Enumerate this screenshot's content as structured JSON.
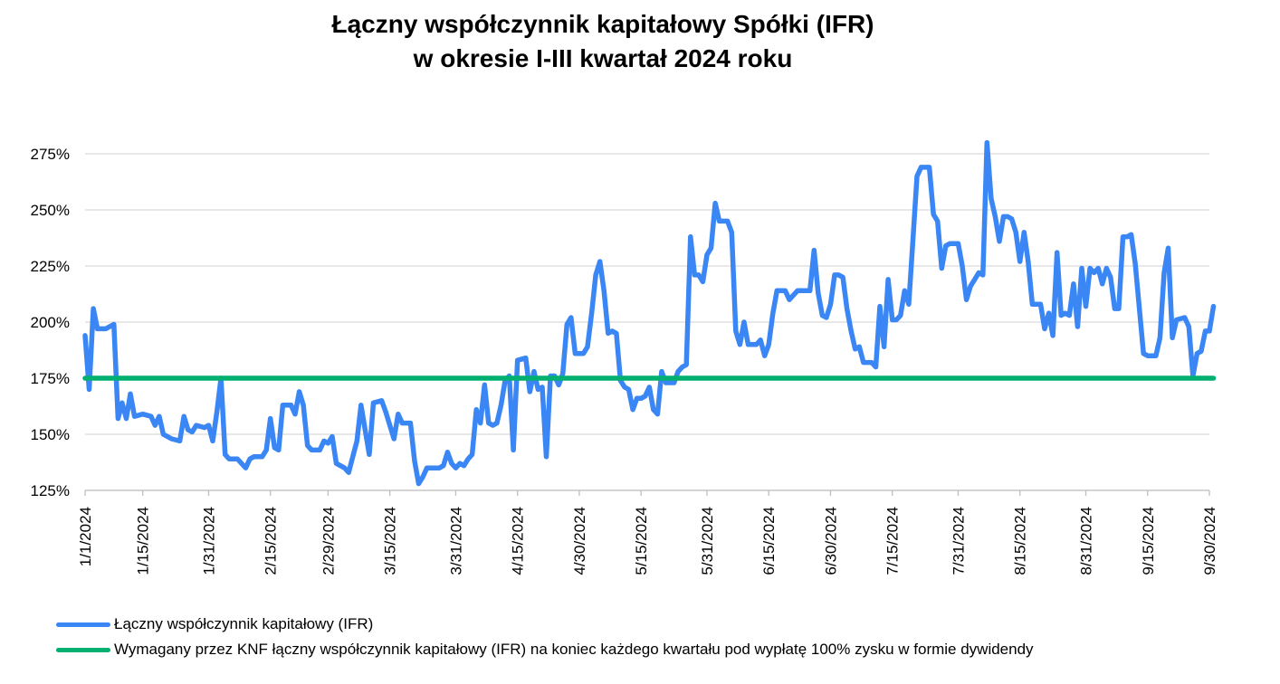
{
  "title_line1": "Łączny współczynnik kapitałowy Spółki (IFR)",
  "title_line2": "w okresie I-III kwartał 2024 roku",
  "chart_data": {
    "type": "line",
    "title": "Łączny współczynnik kapitałowy Spółki (IFR) w okresie I-III kwartał 2024 roku",
    "xlabel": "",
    "ylabel": "",
    "x_range": [
      "2024-01-01",
      "2024-09-30"
    ],
    "x_tick_labels": [
      "1/1/2024",
      "1/15/2024",
      "1/31/2024",
      "2/15/2024",
      "2/29/2024",
      "3/15/2024",
      "3/31/2024",
      "4/15/2024",
      "4/30/2024",
      "5/15/2024",
      "5/31/2024",
      "6/15/2024",
      "6/30/2024",
      "7/15/2024",
      "7/31/2024",
      "8/15/2024",
      "8/31/2024",
      "9/15/2024",
      "9/30/2024"
    ],
    "y_ticks": [
      125,
      150,
      175,
      200,
      225,
      250,
      275
    ],
    "y_tick_labels": [
      "125%",
      "150%",
      "175%",
      "200%",
      "225%",
      "250%",
      "275%"
    ],
    "ylim": [
      125,
      280
    ],
    "grid": "horizontal",
    "legend_position": "bottom",
    "series": [
      {
        "name": "Łączny współczynnik kapitałowy (IFR)",
        "color": "#3a86f4",
        "points": [
          [
            "2024-01-01",
            194
          ],
          [
            "2024-01-02",
            170
          ],
          [
            "2024-01-03",
            206
          ],
          [
            "2024-01-04",
            197
          ],
          [
            "2024-01-06",
            197
          ],
          [
            "2024-01-08",
            199
          ],
          [
            "2024-01-09",
            157
          ],
          [
            "2024-01-10",
            164
          ],
          [
            "2024-01-11",
            157
          ],
          [
            "2024-01-12",
            168
          ],
          [
            "2024-01-13",
            158
          ],
          [
            "2024-01-15",
            159
          ],
          [
            "2024-01-17",
            158
          ],
          [
            "2024-01-18",
            154
          ],
          [
            "2024-01-19",
            158
          ],
          [
            "2024-01-20",
            150
          ],
          [
            "2024-01-22",
            148
          ],
          [
            "2024-01-24",
            147
          ],
          [
            "2024-01-25",
            158
          ],
          [
            "2024-01-26",
            152
          ],
          [
            "2024-01-27",
            151
          ],
          [
            "2024-01-28",
            154
          ],
          [
            "2024-01-30",
            153
          ],
          [
            "2024-01-31",
            154
          ],
          [
            "2024-02-01",
            147
          ],
          [
            "2024-02-02",
            160
          ],
          [
            "2024-02-03",
            175
          ],
          [
            "2024-02-04",
            141
          ],
          [
            "2024-02-05",
            139
          ],
          [
            "2024-02-07",
            139
          ],
          [
            "2024-02-09",
            135
          ],
          [
            "2024-02-10",
            139
          ],
          [
            "2024-02-11",
            140
          ],
          [
            "2024-02-13",
            140
          ],
          [
            "2024-02-14",
            143
          ],
          [
            "2024-02-15",
            157
          ],
          [
            "2024-02-16",
            144
          ],
          [
            "2024-02-17",
            143
          ],
          [
            "2024-02-18",
            163
          ],
          [
            "2024-02-20",
            163
          ],
          [
            "2024-02-21",
            159
          ],
          [
            "2024-02-22",
            169
          ],
          [
            "2024-02-23",
            163
          ],
          [
            "2024-02-24",
            145
          ],
          [
            "2024-02-25",
            143
          ],
          [
            "2024-02-27",
            143
          ],
          [
            "2024-02-28",
            147
          ],
          [
            "2024-02-29",
            146
          ],
          [
            "2024-03-01",
            149
          ],
          [
            "2024-03-02",
            137
          ],
          [
            "2024-03-04",
            135
          ],
          [
            "2024-03-05",
            133
          ],
          [
            "2024-03-06",
            140
          ],
          [
            "2024-03-07",
            147
          ],
          [
            "2024-03-08",
            163
          ],
          [
            "2024-03-10",
            141
          ],
          [
            "2024-03-11",
            164
          ],
          [
            "2024-03-13",
            165
          ],
          [
            "2024-03-14",
            160
          ],
          [
            "2024-03-16",
            148
          ],
          [
            "2024-03-17",
            159
          ],
          [
            "2024-03-18",
            155
          ],
          [
            "2024-03-20",
            155
          ],
          [
            "2024-03-21",
            138
          ],
          [
            "2024-03-22",
            128
          ],
          [
            "2024-03-23",
            131
          ],
          [
            "2024-03-24",
            135
          ],
          [
            "2024-03-26",
            135
          ],
          [
            "2024-03-27",
            135
          ],
          [
            "2024-03-28",
            136
          ],
          [
            "2024-03-29",
            142
          ],
          [
            "2024-03-30",
            137
          ],
          [
            "2024-03-31",
            135
          ],
          [
            "2024-04-01",
            137
          ],
          [
            "2024-04-02",
            136
          ],
          [
            "2024-04-03",
            139
          ],
          [
            "2024-04-04",
            141
          ],
          [
            "2024-04-05",
            161
          ],
          [
            "2024-04-06",
            155
          ],
          [
            "2024-04-07",
            172
          ],
          [
            "2024-04-08",
            155
          ],
          [
            "2024-04-09",
            154
          ],
          [
            "2024-04-10",
            155
          ],
          [
            "2024-04-11",
            163
          ],
          [
            "2024-04-12",
            174
          ],
          [
            "2024-04-13",
            176
          ],
          [
            "2024-04-14",
            143
          ],
          [
            "2024-04-15",
            183
          ],
          [
            "2024-04-17",
            184
          ],
          [
            "2024-04-18",
            169
          ],
          [
            "2024-04-19",
            178
          ],
          [
            "2024-04-20",
            170
          ],
          [
            "2024-04-21",
            171
          ],
          [
            "2024-04-22",
            140
          ],
          [
            "2024-04-23",
            176
          ],
          [
            "2024-04-24",
            176
          ],
          [
            "2024-04-25",
            172
          ],
          [
            "2024-04-26",
            177
          ],
          [
            "2024-04-27",
            199
          ],
          [
            "2024-04-28",
            202
          ],
          [
            "2024-04-29",
            186
          ],
          [
            "2024-04-30",
            186
          ],
          [
            "2024-05-01",
            186
          ],
          [
            "2024-05-02",
            189
          ],
          [
            "2024-05-03",
            204
          ],
          [
            "2024-05-04",
            221
          ],
          [
            "2024-05-05",
            227
          ],
          [
            "2024-05-06",
            214
          ],
          [
            "2024-05-07",
            195
          ],
          [
            "2024-05-08",
            196
          ],
          [
            "2024-05-09",
            195
          ],
          [
            "2024-05-10",
            174
          ],
          [
            "2024-05-11",
            171
          ],
          [
            "2024-05-12",
            170
          ],
          [
            "2024-05-13",
            161
          ],
          [
            "2024-05-14",
            166
          ],
          [
            "2024-05-15",
            166
          ],
          [
            "2024-05-16",
            167
          ],
          [
            "2024-05-17",
            171
          ],
          [
            "2024-05-18",
            161
          ],
          [
            "2024-05-19",
            159
          ],
          [
            "2024-05-20",
            178
          ],
          [
            "2024-05-21",
            173
          ],
          [
            "2024-05-22",
            173
          ],
          [
            "2024-05-23",
            173
          ],
          [
            "2024-05-24",
            178
          ],
          [
            "2024-05-25",
            180
          ],
          [
            "2024-05-26",
            181
          ],
          [
            "2024-05-27",
            238
          ],
          [
            "2024-05-28",
            221
          ],
          [
            "2024-05-29",
            221
          ],
          [
            "2024-05-30",
            218
          ],
          [
            "2024-05-31",
            230
          ],
          [
            "2024-06-01",
            233
          ],
          [
            "2024-06-02",
            253
          ],
          [
            "2024-06-03",
            245
          ],
          [
            "2024-06-04",
            245
          ],
          [
            "2024-06-05",
            245
          ],
          [
            "2024-06-06",
            240
          ],
          [
            "2024-06-07",
            196
          ],
          [
            "2024-06-08",
            190
          ],
          [
            "2024-06-09",
            200
          ],
          [
            "2024-06-10",
            190
          ],
          [
            "2024-06-11",
            190
          ],
          [
            "2024-06-12",
            190
          ],
          [
            "2024-06-13",
            192
          ],
          [
            "2024-06-14",
            185
          ],
          [
            "2024-06-15",
            190
          ],
          [
            "2024-06-16",
            204
          ],
          [
            "2024-06-17",
            214
          ],
          [
            "2024-06-18",
            214
          ],
          [
            "2024-06-19",
            214
          ],
          [
            "2024-06-20",
            210
          ],
          [
            "2024-06-21",
            212
          ],
          [
            "2024-06-22",
            214
          ],
          [
            "2024-06-23",
            214
          ],
          [
            "2024-06-24",
            214
          ],
          [
            "2024-06-25",
            214
          ],
          [
            "2024-06-26",
            232
          ],
          [
            "2024-06-27",
            213
          ],
          [
            "2024-06-28",
            203
          ],
          [
            "2024-06-29",
            202
          ],
          [
            "2024-06-30",
            208
          ],
          [
            "2024-07-01",
            221
          ],
          [
            "2024-07-02",
            221
          ],
          [
            "2024-07-03",
            220
          ],
          [
            "2024-07-04",
            206
          ],
          [
            "2024-07-05",
            196
          ],
          [
            "2024-07-06",
            188
          ],
          [
            "2024-07-07",
            189
          ],
          [
            "2024-07-08",
            182
          ],
          [
            "2024-07-09",
            182
          ],
          [
            "2024-07-10",
            182
          ],
          [
            "2024-07-11",
            180
          ],
          [
            "2024-07-12",
            207
          ],
          [
            "2024-07-13",
            189
          ],
          [
            "2024-07-14",
            219
          ],
          [
            "2024-07-15",
            201
          ],
          [
            "2024-07-16",
            201
          ],
          [
            "2024-07-17",
            203
          ],
          [
            "2024-07-18",
            214
          ],
          [
            "2024-07-19",
            208
          ],
          [
            "2024-07-20",
            236
          ],
          [
            "2024-07-21",
            265
          ],
          [
            "2024-07-22",
            269
          ],
          [
            "2024-07-24",
            269
          ],
          [
            "2024-07-25",
            248
          ],
          [
            "2024-07-26",
            245
          ],
          [
            "2024-07-27",
            224
          ],
          [
            "2024-07-28",
            234
          ],
          [
            "2024-07-29",
            235
          ],
          [
            "2024-07-31",
            235
          ],
          [
            "2024-08-01",
            225
          ],
          [
            "2024-08-02",
            210
          ],
          [
            "2024-08-03",
            216
          ],
          [
            "2024-08-04",
            219
          ],
          [
            "2024-08-05",
            222
          ],
          [
            "2024-08-06",
            221
          ],
          [
            "2024-08-07",
            280
          ],
          [
            "2024-08-08",
            255
          ],
          [
            "2024-08-09",
            247
          ],
          [
            "2024-08-10",
            236
          ],
          [
            "2024-08-11",
            247
          ],
          [
            "2024-08-12",
            247
          ],
          [
            "2024-08-13",
            246
          ],
          [
            "2024-08-14",
            240
          ],
          [
            "2024-08-15",
            227
          ],
          [
            "2024-08-16",
            240
          ],
          [
            "2024-08-17",
            227
          ],
          [
            "2024-08-18",
            208
          ],
          [
            "2024-08-19",
            208
          ],
          [
            "2024-08-20",
            208
          ],
          [
            "2024-08-21",
            197
          ],
          [
            "2024-08-22",
            204
          ],
          [
            "2024-08-23",
            194
          ],
          [
            "2024-08-24",
            231
          ],
          [
            "2024-08-25",
            203
          ],
          [
            "2024-08-26",
            204
          ],
          [
            "2024-08-27",
            203
          ],
          [
            "2024-08-28",
            217
          ],
          [
            "2024-08-29",
            198
          ],
          [
            "2024-08-30",
            224
          ],
          [
            "2024-08-31",
            207
          ],
          [
            "2024-09-01",
            224
          ],
          [
            "2024-09-02",
            222
          ],
          [
            "2024-09-03",
            224
          ],
          [
            "2024-09-04",
            217
          ],
          [
            "2024-09-05",
            224
          ],
          [
            "2024-09-06",
            220
          ],
          [
            "2024-09-07",
            206
          ],
          [
            "2024-09-08",
            206
          ],
          [
            "2024-09-09",
            238
          ],
          [
            "2024-09-10",
            238
          ],
          [
            "2024-09-11",
            239
          ],
          [
            "2024-09-12",
            226
          ],
          [
            "2024-09-14",
            186
          ],
          [
            "2024-09-15",
            185
          ],
          [
            "2024-09-17",
            185
          ],
          [
            "2024-09-18",
            193
          ],
          [
            "2024-09-19",
            222
          ],
          [
            "2024-09-20",
            233
          ],
          [
            "2024-09-21",
            193
          ],
          [
            "2024-09-22",
            201
          ],
          [
            "2024-09-24",
            202
          ],
          [
            "2024-09-25",
            198
          ],
          [
            "2024-09-26",
            176
          ],
          [
            "2024-09-27",
            186
          ],
          [
            "2024-09-28",
            187
          ],
          [
            "2024-09-29",
            196
          ],
          [
            "2024-09-30",
            196
          ],
          [
            "2024-10-01",
            207
          ]
        ]
      },
      {
        "name": "Wymagany przez KNF łączny współczynnik kapitałowy (IFR) na koniec każdego kwartału pod wypłatę 100% zysku w formie dywidendy",
        "color": "#00b070",
        "points": [
          [
            "2024-01-01",
            175
          ],
          [
            "2024-10-01",
            175
          ]
        ]
      }
    ]
  }
}
